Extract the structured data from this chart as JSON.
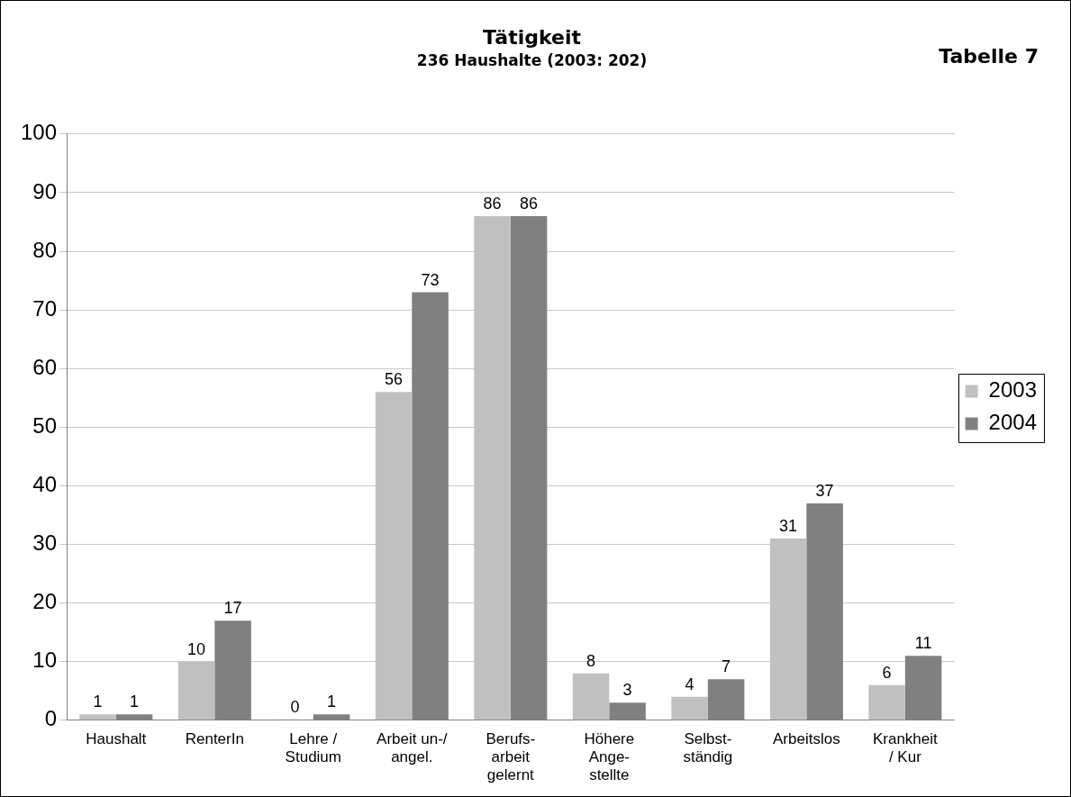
{
  "chart_data": {
    "type": "bar",
    "title": "Tätigkeit",
    "subtitle": "236 Haushalte (2003: 202)",
    "annotations": [
      "Tabelle 7"
    ],
    "categories": [
      "Haushalt",
      "RenterIn",
      "Lehre /\nStudium",
      "Arbeit un-/\nangel.",
      "Berufs-\narbeit\ngelernt",
      "Höhere\nAnge-\nstellte",
      "Selbst-\nständig",
      "Arbeitslos",
      "Krankheit\n/ Kur"
    ],
    "series": [
      {
        "name": "2003",
        "color": "#c0c0c0",
        "values": [
          1,
          10,
          0,
          56,
          86,
          8,
          4,
          31,
          6
        ]
      },
      {
        "name": "2004",
        "color": "#808080",
        "values": [
          1,
          17,
          1,
          73,
          86,
          3,
          7,
          37,
          11
        ]
      }
    ],
    "ylim": [
      0,
      100
    ],
    "yticks": [
      0,
      10,
      20,
      30,
      40,
      50,
      60,
      70,
      80,
      90,
      100
    ],
    "grid": "y",
    "legend": "right",
    "data_labels": true
  }
}
